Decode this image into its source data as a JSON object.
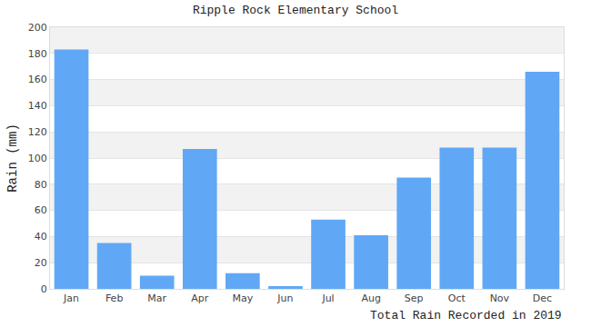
{
  "chart_data": {
    "type": "bar",
    "title": "Ripple Rock Elementary School",
    "ylabel": "Rain (mm)",
    "xlabel": "Total Rain Recorded in 2019",
    "categories": [
      "Jan",
      "Feb",
      "Mar",
      "Apr",
      "May",
      "Jun",
      "Jul",
      "Aug",
      "Sep",
      "Oct",
      "Nov",
      "Dec"
    ],
    "values": [
      183,
      35,
      10,
      107,
      12,
      2,
      53,
      41,
      85,
      108,
      108,
      166
    ],
    "color": "#60a8f5",
    "ylim": [
      0,
      200
    ],
    "yticks": [
      0,
      20,
      40,
      60,
      80,
      100,
      120,
      140,
      160,
      180,
      200
    ],
    "grid": true
  }
}
